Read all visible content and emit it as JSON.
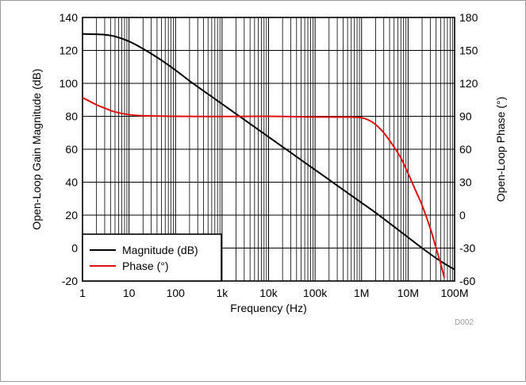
{
  "chart_data": {
    "type": "line",
    "title": "",
    "xlabel": "Frequency (Hz)",
    "ylabel": "Open-Loop Gain Magnitude (dB)",
    "y2label": "Open-Loop Phase (°)",
    "figure_code": "D002",
    "x_scale": "log",
    "xlim": [
      1,
      100000000
    ],
    "ylim": [
      -20,
      140
    ],
    "y2lim": [
      -60,
      180
    ],
    "x_ticks": [
      1,
      10,
      100,
      1000,
      10000,
      100000,
      1000000,
      10000000,
      100000000
    ],
    "x_tick_labels": [
      "1",
      "10",
      "100",
      "1k",
      "10k",
      "100k",
      "1M",
      "10M",
      "100M"
    ],
    "y_ticks": [
      -20,
      0,
      20,
      40,
      60,
      80,
      100,
      120,
      140
    ],
    "y_tick_labels": [
      "-20",
      "0",
      "20",
      "40",
      "60",
      "80",
      "100",
      "120",
      "140"
    ],
    "y2_ticks": [
      -60,
      -30,
      0,
      30,
      60,
      90,
      120,
      150,
      180
    ],
    "y2_tick_labels": [
      "-60",
      "-30",
      "0",
      "30",
      "60",
      "90",
      "120",
      "150",
      "180"
    ],
    "grid": true,
    "legend_position": "bottom-left",
    "series": [
      {
        "name": "Magnitude (dB)",
        "axis": "left",
        "color": "#000000",
        "x": [
          1,
          2,
          3,
          5,
          10,
          20,
          30,
          50,
          100,
          200,
          500,
          1000,
          2000,
          5000,
          10000,
          20000,
          50000,
          100000,
          200000,
          500000,
          1000000,
          2000000,
          5000000,
          10000000,
          20000000,
          50000000,
          100000000
        ],
        "y": [
          130,
          129.8,
          129.5,
          128.5,
          125.5,
          121,
          118,
          114,
          108,
          101.5,
          93.5,
          87.5,
          81.5,
          73.5,
          67.5,
          61.5,
          53.5,
          47.5,
          41.5,
          33.5,
          27.5,
          21.5,
          13,
          6.5,
          0,
          -8,
          -13
        ]
      },
      {
        "name": "Phase (°)",
        "axis": "right",
        "color": "#e01010",
        "x": [
          1,
          2,
          3,
          5,
          10,
          20,
          50,
          100,
          1000,
          10000,
          100000,
          500000,
          1000000,
          1500000,
          2000000,
          3000000,
          5000000,
          7000000,
          10000000,
          15000000,
          20000000,
          30000000,
          40000000,
          50000000,
          60000000
        ],
        "y": [
          107,
          100.5,
          97.5,
          94,
          91.5,
          90.5,
          90.2,
          90,
          89.8,
          90,
          89.4,
          89.3,
          88.7,
          86,
          82.5,
          75,
          62,
          52,
          38,
          21,
          9,
          -12,
          -30,
          -44,
          -57
        ]
      }
    ]
  }
}
